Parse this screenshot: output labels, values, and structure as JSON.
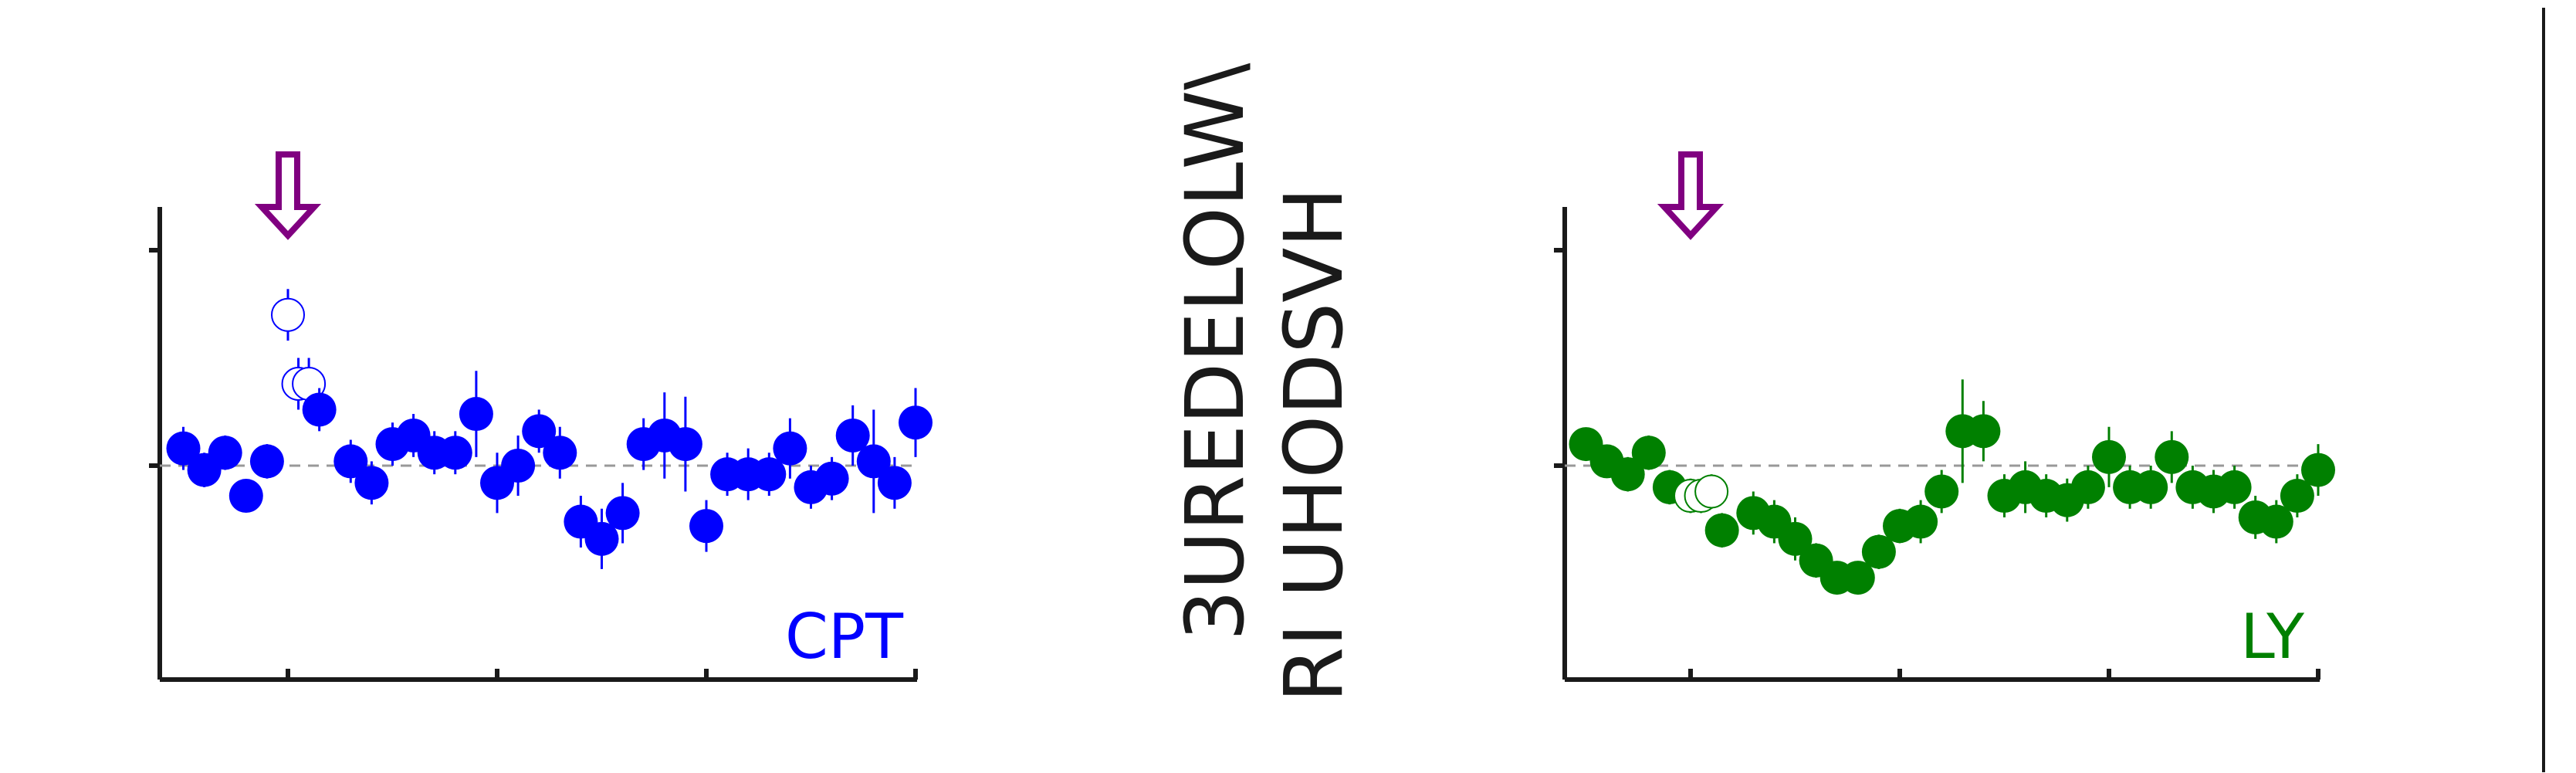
{
  "ylabel_lines": [
    "3UREDELOLW\\",
    "RI UHODSVH"
  ],
  "colors": {
    "cpt": "#0000ff",
    "ly": "#008000",
    "arrow": "#800080",
    "axis": "#1a1a1a",
    "refline": "#999999"
  },
  "chart_data": [
    {
      "type": "scatter",
      "label": "CPT",
      "color": "#0000ff",
      "grid": false,
      "xlim": [
        -4,
        33
      ],
      "ylim": [
        0,
        1.1
      ],
      "xticks": [
        2,
        12,
        22,
        32
      ],
      "yticks": [
        0.5,
        1.0
      ],
      "reference_y": 0.5,
      "arrow_x": 2,
      "points": [
        {
          "x": -3,
          "y": 0.54,
          "err": 0.05,
          "filled": true
        },
        {
          "x": -2,
          "y": 0.49,
          "err": 0.04,
          "filled": true
        },
        {
          "x": -1,
          "y": 0.53,
          "err": 0.04,
          "filled": true
        },
        {
          "x": 0,
          "y": 0.43,
          "err": 0.03,
          "filled": true
        },
        {
          "x": 1,
          "y": 0.51,
          "err": 0.04,
          "filled": true
        },
        {
          "x": 2,
          "y": 0.85,
          "err": 0.06,
          "filled": false
        },
        {
          "x": 2.5,
          "y": 0.69,
          "err": 0.06,
          "filled": false
        },
        {
          "x": 3,
          "y": 0.69,
          "err": 0.06,
          "filled": false
        },
        {
          "x": 3.5,
          "y": 0.63,
          "err": 0.05,
          "filled": true
        },
        {
          "x": 5,
          "y": 0.51,
          "err": 0.05,
          "filled": true
        },
        {
          "x": 6,
          "y": 0.46,
          "err": 0.05,
          "filled": true
        },
        {
          "x": 7,
          "y": 0.55,
          "err": 0.05,
          "filled": true
        },
        {
          "x": 8,
          "y": 0.57,
          "err": 0.05,
          "filled": true
        },
        {
          "x": 9,
          "y": 0.53,
          "err": 0.05,
          "filled": true
        },
        {
          "x": 10,
          "y": 0.53,
          "err": 0.05,
          "filled": true
        },
        {
          "x": 11,
          "y": 0.62,
          "err": 0.1,
          "filled": true
        },
        {
          "x": 12,
          "y": 0.46,
          "err": 0.07,
          "filled": true
        },
        {
          "x": 13,
          "y": 0.5,
          "err": 0.07,
          "filled": true
        },
        {
          "x": 14,
          "y": 0.58,
          "err": 0.05,
          "filled": true
        },
        {
          "x": 15,
          "y": 0.53,
          "err": 0.06,
          "filled": true
        },
        {
          "x": 16,
          "y": 0.37,
          "err": 0.06,
          "filled": true
        },
        {
          "x": 17,
          "y": 0.33,
          "err": 0.07,
          "filled": true
        },
        {
          "x": 18,
          "y": 0.39,
          "err": 0.07,
          "filled": true
        },
        {
          "x": 19,
          "y": 0.55,
          "err": 0.06,
          "filled": true
        },
        {
          "x": 20,
          "y": 0.57,
          "err": 0.1,
          "filled": true
        },
        {
          "x": 21,
          "y": 0.55,
          "err": 0.11,
          "filled": true
        },
        {
          "x": 22,
          "y": 0.36,
          "err": 0.06,
          "filled": true
        },
        {
          "x": 23,
          "y": 0.48,
          "err": 0.05,
          "filled": true
        },
        {
          "x": 24,
          "y": 0.48,
          "err": 0.06,
          "filled": true
        },
        {
          "x": 25,
          "y": 0.48,
          "err": 0.05,
          "filled": true
        },
        {
          "x": 26,
          "y": 0.54,
          "err": 0.07,
          "filled": true
        },
        {
          "x": 27,
          "y": 0.45,
          "err": 0.05,
          "filled": true
        },
        {
          "x": 28,
          "y": 0.47,
          "err": 0.05,
          "filled": true
        },
        {
          "x": 29,
          "y": 0.57,
          "err": 0.07,
          "filled": true
        },
        {
          "x": 30,
          "y": 0.51,
          "err": 0.12,
          "filled": true
        },
        {
          "x": 31,
          "y": 0.46,
          "err": 0.06,
          "filled": true
        },
        {
          "x": 32,
          "y": 0.6,
          "err": 0.08,
          "filled": true
        }
      ]
    },
    {
      "type": "scatter",
      "label": "LY",
      "color": "#008000",
      "grid": false,
      "xlim": [
        -4,
        33
      ],
      "ylim": [
        0,
        1.1
      ],
      "xticks": [
        2,
        12,
        22,
        32
      ],
      "yticks": [
        0.5,
        1.0
      ],
      "reference_y": 0.5,
      "arrow_x": 2,
      "points": [
        {
          "x": -3,
          "y": 0.55,
          "err": 0.02,
          "filled": true
        },
        {
          "x": -2,
          "y": 0.51,
          "err": 0.03,
          "filled": true
        },
        {
          "x": -1,
          "y": 0.48,
          "err": 0.04,
          "filled": true
        },
        {
          "x": 0,
          "y": 0.53,
          "err": 0.04,
          "filled": true
        },
        {
          "x": 1,
          "y": 0.45,
          "err": 0.04,
          "filled": true
        },
        {
          "x": 2,
          "y": 0.43,
          "err": 0.04,
          "filled": false
        },
        {
          "x": 2.5,
          "y": 0.43,
          "err": 0.04,
          "filled": false
        },
        {
          "x": 3,
          "y": 0.44,
          "err": 0.04,
          "filled": false
        },
        {
          "x": 3.5,
          "y": 0.35,
          "err": 0.04,
          "filled": true
        },
        {
          "x": 5,
          "y": 0.39,
          "err": 0.05,
          "filled": true
        },
        {
          "x": 6,
          "y": 0.37,
          "err": 0.05,
          "filled": true
        },
        {
          "x": 7,
          "y": 0.33,
          "err": 0.05,
          "filled": true
        },
        {
          "x": 8,
          "y": 0.28,
          "err": 0.04,
          "filled": true
        },
        {
          "x": 9,
          "y": 0.24,
          "err": 0.03,
          "filled": true
        },
        {
          "x": 10,
          "y": 0.24,
          "err": 0.03,
          "filled": true
        },
        {
          "x": 11,
          "y": 0.3,
          "err": 0.04,
          "filled": true
        },
        {
          "x": 12,
          "y": 0.36,
          "err": 0.04,
          "filled": true
        },
        {
          "x": 13,
          "y": 0.37,
          "err": 0.05,
          "filled": true
        },
        {
          "x": 14,
          "y": 0.44,
          "err": 0.05,
          "filled": true
        },
        {
          "x": 15,
          "y": 0.58,
          "err": 0.12,
          "filled": true
        },
        {
          "x": 16,
          "y": 0.58,
          "err": 0.07,
          "filled": true
        },
        {
          "x": 17,
          "y": 0.43,
          "err": 0.05,
          "filled": true
        },
        {
          "x": 18,
          "y": 0.45,
          "err": 0.06,
          "filled": true
        },
        {
          "x": 19,
          "y": 0.43,
          "err": 0.05,
          "filled": true
        },
        {
          "x": 20,
          "y": 0.42,
          "err": 0.05,
          "filled": true
        },
        {
          "x": 21,
          "y": 0.45,
          "err": 0.05,
          "filled": true
        },
        {
          "x": 22,
          "y": 0.52,
          "err": 0.07,
          "filled": true
        },
        {
          "x": 23,
          "y": 0.45,
          "err": 0.05,
          "filled": true
        },
        {
          "x": 24,
          "y": 0.45,
          "err": 0.05,
          "filled": true
        },
        {
          "x": 25,
          "y": 0.52,
          "err": 0.06,
          "filled": true
        },
        {
          "x": 26,
          "y": 0.45,
          "err": 0.05,
          "filled": true
        },
        {
          "x": 27,
          "y": 0.44,
          "err": 0.05,
          "filled": true
        },
        {
          "x": 28,
          "y": 0.45,
          "err": 0.05,
          "filled": true
        },
        {
          "x": 29,
          "y": 0.38,
          "err": 0.05,
          "filled": true
        },
        {
          "x": 30,
          "y": 0.37,
          "err": 0.05,
          "filled": true
        },
        {
          "x": 31,
          "y": 0.43,
          "err": 0.05,
          "filled": true
        },
        {
          "x": 32,
          "y": 0.49,
          "err": 0.06,
          "filled": true
        }
      ]
    }
  ]
}
